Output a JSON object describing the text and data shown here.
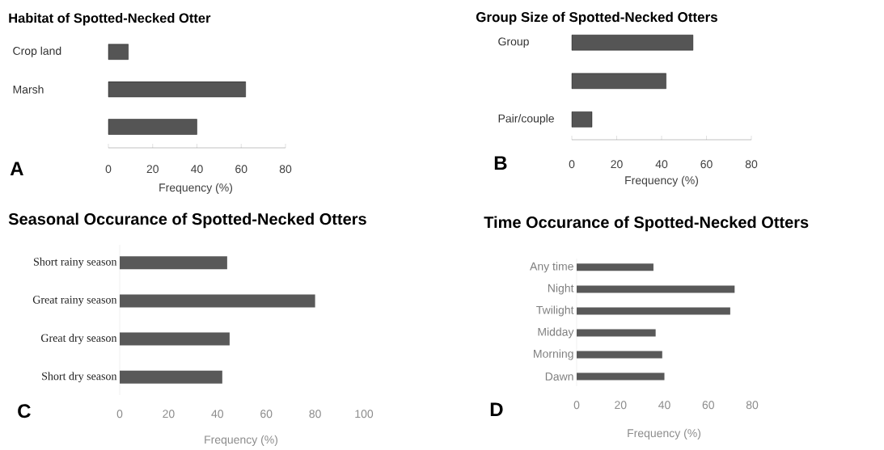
{
  "chart_data": [
    {
      "type": "bar",
      "orientation": "horizontal",
      "title": "Habitat of Spotted-Necked Otter",
      "xlabel": "Frequency (%)",
      "annotations": [
        "A"
      ],
      "categories": [
        "Crop land",
        "Marsh",
        null
      ],
      "values": [
        9,
        62,
        40
      ],
      "color": "#555555",
      "xlim": [
        0,
        80
      ],
      "xticks": [
        0,
        20,
        40,
        60,
        80
      ]
    },
    {
      "type": "bar",
      "orientation": "horizontal",
      "title": "Group Size of Spotted-Necked Otters",
      "xlabel": "Frequency (%)",
      "annotations": [
        "B"
      ],
      "categories": [
        "Group",
        null,
        "Pair/couple"
      ],
      "values": [
        54,
        42,
        9
      ],
      "color": "#555555",
      "xlim": [
        0,
        80
      ],
      "xticks": [
        0,
        20,
        40,
        60,
        80
      ]
    },
    {
      "type": "bar",
      "orientation": "horizontal",
      "title": "Seasonal Occurance of Spotted-Necked Otters",
      "xlabel": "Frequency (%)",
      "annotations": [
        "C"
      ],
      "categories": [
        "Short rainy season",
        "Great rainy season",
        "Great dry season",
        "Short dry season"
      ],
      "values": [
        44,
        80,
        45,
        42
      ],
      "color": "#595959",
      "xlim": [
        0,
        100
      ],
      "xticks": [
        0,
        20,
        40,
        60,
        80,
        100
      ]
    },
    {
      "type": "bar",
      "orientation": "horizontal",
      "title": "Time Occurance of Spotted-Necked Otters",
      "xlabel": "Frequency (%)",
      "annotations": [
        "D"
      ],
      "categories": [
        "Any time",
        "Night",
        "Twilight",
        "Midday",
        "Morning",
        "Dawn"
      ],
      "values": [
        35,
        72,
        70,
        36,
        39,
        40
      ],
      "color": "#595959",
      "xlim": [
        0,
        80
      ],
      "xticks": [
        0,
        20,
        40,
        60,
        80
      ]
    }
  ]
}
